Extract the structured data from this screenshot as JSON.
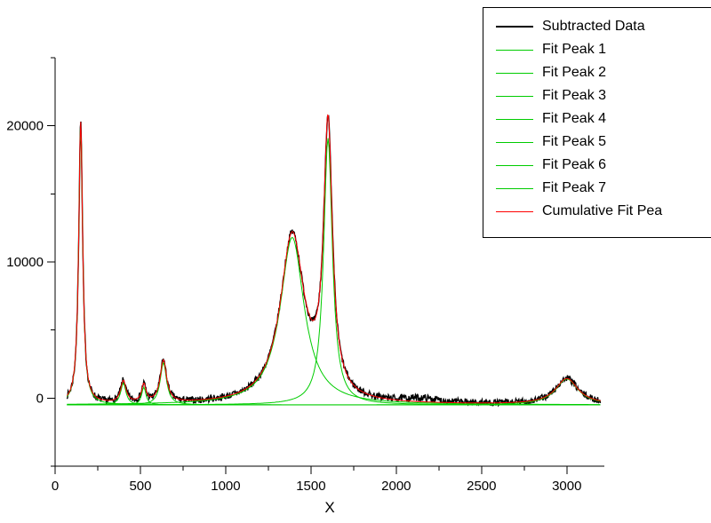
{
  "chart_data": {
    "type": "line",
    "title": "",
    "xlabel": "X",
    "ylabel": "",
    "xlim": [
      0,
      3220
    ],
    "ylim": [
      -5000,
      25000
    ],
    "x_major_ticks": [
      0,
      500,
      1000,
      1500,
      2000,
      2500,
      3000
    ],
    "x_minor_step": 250,
    "y_major_ticks": [
      0,
      10000,
      20000
    ],
    "y_minor_step": 5000,
    "grid": false,
    "legend_position": "top-right",
    "baseline": -500,
    "data_x_range": [
      70,
      3200
    ],
    "noise_amplitude": 250,
    "peaks": [
      {
        "name": "Fit Peak 1",
        "center": 150,
        "amplitude": 20700,
        "fwhm": 28
      },
      {
        "name": "Fit Peak 2",
        "center": 400,
        "amplitude": 1600,
        "fwhm": 38
      },
      {
        "name": "Fit Peak 3",
        "center": 520,
        "amplitude": 1300,
        "fwhm": 30
      },
      {
        "name": "Fit Peak 4",
        "center": 635,
        "amplitude": 3100,
        "fwhm": 45
      },
      {
        "name": "Fit Peak 5",
        "center": 1390,
        "amplitude": 12300,
        "fwhm": 170
      },
      {
        "name": "Fit Peak 6",
        "center": 1600,
        "amplitude": 19600,
        "fwhm": 62
      },
      {
        "name": "Fit Peak 7",
        "center": 3000,
        "amplitude": 1900,
        "fwhm": 160
      }
    ],
    "unfitted_data_bumps": [
      {
        "center": 2150,
        "amplitude": 300,
        "fwhm": 260
      }
    ],
    "series_colors": {
      "data": "#000000",
      "fit": "#00CC00",
      "cumulative": "#FF0000"
    },
    "legend": {
      "entries": [
        {
          "label": "Subtracted Data",
          "color": "#000000",
          "line_width": 2
        },
        {
          "label": "Fit Peak 1",
          "color": "#00CC00",
          "line_width": 1.5
        },
        {
          "label": "Fit Peak 2",
          "color": "#00CC00",
          "line_width": 1.5
        },
        {
          "label": "Fit Peak 3",
          "color": "#00CC00",
          "line_width": 1.5
        },
        {
          "label": "Fit Peak 4",
          "color": "#00CC00",
          "line_width": 1.5
        },
        {
          "label": "Fit Peak 5",
          "color": "#00CC00",
          "line_width": 1.5
        },
        {
          "label": "Fit Peak 6",
          "color": "#00CC00",
          "line_width": 1.5
        },
        {
          "label": "Fit Peak 7",
          "color": "#00CC00",
          "line_width": 1.5
        },
        {
          "label": "Cumulative Fit Pea",
          "color": "#FF0000",
          "line_width": 1.5
        }
      ]
    }
  }
}
